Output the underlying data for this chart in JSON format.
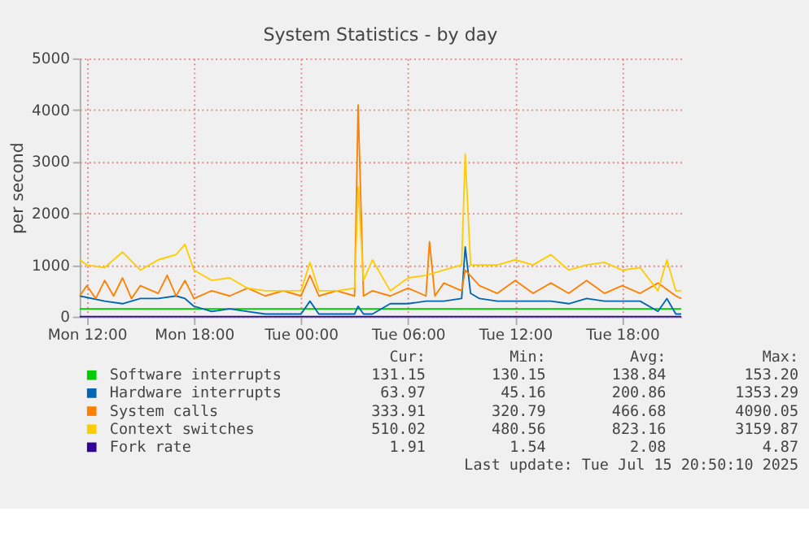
{
  "chart_data": {
    "type": "line",
    "title": "System Statistics - by day",
    "ylabel": "per second",
    "xlim": [
      "2025-07-14T11:36",
      "2025-07-15T21:18"
    ],
    "xticks": [
      {
        "value": "2025-07-14T12:00",
        "label": "Mon 12:00"
      },
      {
        "value": "2025-07-14T18:00",
        "label": "Mon 18:00"
      },
      {
        "value": "2025-07-15T00:00",
        "label": "Tue 00:00"
      },
      {
        "value": "2025-07-15T06:00",
        "label": "Tue 06:00"
      },
      {
        "value": "2025-07-15T12:00",
        "label": "Tue 12:00"
      },
      {
        "value": "2025-07-15T18:00",
        "label": "Tue 18:00"
      }
    ],
    "ylim": [
      0,
      5000
    ],
    "yticks": [
      0,
      1000,
      2000,
      3000,
      4000,
      5000
    ],
    "grid": true,
    "legend": "bottom",
    "line_style": "solid",
    "marker": "none",
    "series": [
      {
        "name": "Software interrupts",
        "color": "#00cc00",
        "x": [
          "2025-07-14T11:36",
          "2025-07-14T18:00",
          "2025-07-15T06:00",
          "2025-07-15T18:00",
          "2025-07-15T21:18"
        ],
        "values": [
          150,
          150,
          150,
          150,
          150
        ]
      },
      {
        "name": "Hardware interrupts",
        "color": "#0066b3",
        "x": [
          "2025-07-14T11:36",
          "2025-07-14T13:00",
          "2025-07-14T14:00",
          "2025-07-14T15:00",
          "2025-07-14T16:00",
          "2025-07-14T17:00",
          "2025-07-14T17:30",
          "2025-07-14T18:00",
          "2025-07-14T19:00",
          "2025-07-14T20:00",
          "2025-07-14T21:00",
          "2025-07-14T22:00",
          "2025-07-14T23:00",
          "2025-07-15T00:00",
          "2025-07-15T00:30",
          "2025-07-15T01:00",
          "2025-07-15T02:00",
          "2025-07-15T03:00",
          "2025-07-15T03:12",
          "2025-07-15T03:30",
          "2025-07-15T04:00",
          "2025-07-15T05:00",
          "2025-07-15T06:00",
          "2025-07-15T07:00",
          "2025-07-15T08:00",
          "2025-07-15T09:00",
          "2025-07-15T09:12",
          "2025-07-15T09:30",
          "2025-07-15T10:00",
          "2025-07-15T11:00",
          "2025-07-15T12:00",
          "2025-07-15T13:00",
          "2025-07-15T14:00",
          "2025-07-15T15:00",
          "2025-07-15T16:00",
          "2025-07-15T17:00",
          "2025-07-15T18:00",
          "2025-07-15T19:00",
          "2025-07-15T20:00",
          "2025-07-15T20:30",
          "2025-07-15T21:00",
          "2025-07-15T21:18"
        ],
        "values": [
          400,
          300,
          250,
          350,
          350,
          400,
          350,
          200,
          100,
          150,
          100,
          50,
          50,
          50,
          300,
          50,
          50,
          50,
          200,
          50,
          50,
          250,
          250,
          300,
          300,
          350,
          1350,
          450,
          350,
          300,
          300,
          300,
          300,
          250,
          350,
          300,
          300,
          300,
          100,
          350,
          50,
          50
        ]
      },
      {
        "name": "System calls",
        "color": "#ff8000",
        "x": [
          "2025-07-14T11:36",
          "2025-07-14T12:00",
          "2025-07-14T12:30",
          "2025-07-14T13:00",
          "2025-07-14T13:30",
          "2025-07-14T14:00",
          "2025-07-14T14:30",
          "2025-07-14T15:00",
          "2025-07-14T16:00",
          "2025-07-14T16:30",
          "2025-07-14T17:00",
          "2025-07-14T17:30",
          "2025-07-14T18:00",
          "2025-07-14T19:00",
          "2025-07-14T20:00",
          "2025-07-14T21:00",
          "2025-07-14T22:00",
          "2025-07-14T23:00",
          "2025-07-15T00:00",
          "2025-07-15T00:30",
          "2025-07-15T01:00",
          "2025-07-15T02:00",
          "2025-07-15T03:00",
          "2025-07-15T03:12",
          "2025-07-15T03:30",
          "2025-07-15T04:00",
          "2025-07-15T05:00",
          "2025-07-15T06:00",
          "2025-07-15T07:00",
          "2025-07-15T07:12",
          "2025-07-15T07:30",
          "2025-07-15T08:00",
          "2025-07-15T09:00",
          "2025-07-15T09:12",
          "2025-07-15T10:00",
          "2025-07-15T11:00",
          "2025-07-15T12:00",
          "2025-07-15T13:00",
          "2025-07-15T14:00",
          "2025-07-15T15:00",
          "2025-07-15T16:00",
          "2025-07-15T17:00",
          "2025-07-15T18:00",
          "2025-07-15T19:00",
          "2025-07-15T20:00",
          "2025-07-15T21:00",
          "2025-07-15T21:18"
        ],
        "values": [
          400,
          600,
          350,
          700,
          400,
          750,
          350,
          600,
          450,
          800,
          400,
          700,
          350,
          500,
          400,
          550,
          400,
          500,
          400,
          800,
          400,
          500,
          400,
          4100,
          400,
          500,
          400,
          550,
          400,
          1450,
          400,
          650,
          500,
          900,
          600,
          450,
          700,
          450,
          650,
          450,
          700,
          450,
          600,
          450,
          650,
          400,
          350
        ]
      },
      {
        "name": "Context switches",
        "color": "#ffcc00",
        "x": [
          "2025-07-14T11:36",
          "2025-07-14T12:00",
          "2025-07-14T13:00",
          "2025-07-14T14:00",
          "2025-07-14T15:00",
          "2025-07-14T16:00",
          "2025-07-14T17:00",
          "2025-07-14T17:30",
          "2025-07-14T18:00",
          "2025-07-14T19:00",
          "2025-07-14T20:00",
          "2025-07-14T21:00",
          "2025-07-14T22:00",
          "2025-07-14T23:00",
          "2025-07-15T00:00",
          "2025-07-15T00:30",
          "2025-07-15T01:00",
          "2025-07-15T02:00",
          "2025-07-15T03:00",
          "2025-07-15T03:12",
          "2025-07-15T03:30",
          "2025-07-15T04:00",
          "2025-07-15T05:00",
          "2025-07-15T06:00",
          "2025-07-15T07:00",
          "2025-07-15T08:00",
          "2025-07-15T09:00",
          "2025-07-15T09:12",
          "2025-07-15T09:30",
          "2025-07-15T10:00",
          "2025-07-15T11:00",
          "2025-07-15T12:00",
          "2025-07-15T13:00",
          "2025-07-15T14:00",
          "2025-07-15T15:00",
          "2025-07-15T16:00",
          "2025-07-15T17:00",
          "2025-07-15T18:00",
          "2025-07-15T19:00",
          "2025-07-15T20:00",
          "2025-07-15T20:30",
          "2025-07-15T21:00",
          "2025-07-15T21:18"
        ],
        "values": [
          1100,
          1000,
          950,
          1250,
          900,
          1100,
          1200,
          1400,
          900,
          700,
          750,
          550,
          500,
          500,
          500,
          1050,
          500,
          500,
          550,
          2500,
          700,
          1100,
          500,
          750,
          800,
          900,
          1000,
          3150,
          1000,
          1000,
          1000,
          1100,
          1000,
          1200,
          900,
          1000,
          1050,
          900,
          950,
          500,
          1100,
          500,
          500
        ]
      },
      {
        "name": "Fork rate",
        "color": "#330099",
        "x": [
          "2025-07-14T11:36",
          "2025-07-15T21:18"
        ],
        "values": [
          0,
          0
        ]
      }
    ],
    "annotations": [
      "Cur:",
      "Min:",
      "Avg:",
      "Max:",
      "131.15",
      "130.15",
      "138.84",
      "153.20",
      "63.97",
      "45.16",
      "200.86",
      "1353.29",
      "333.91",
      "320.79",
      "466.68",
      "4090.05",
      "510.02",
      "480.56",
      "823.16",
      "3159.87",
      "1.91",
      "1.54",
      "2.08",
      "4.87",
      "Last update: Tue Jul 15 20:50:10 2025"
    ]
  }
}
